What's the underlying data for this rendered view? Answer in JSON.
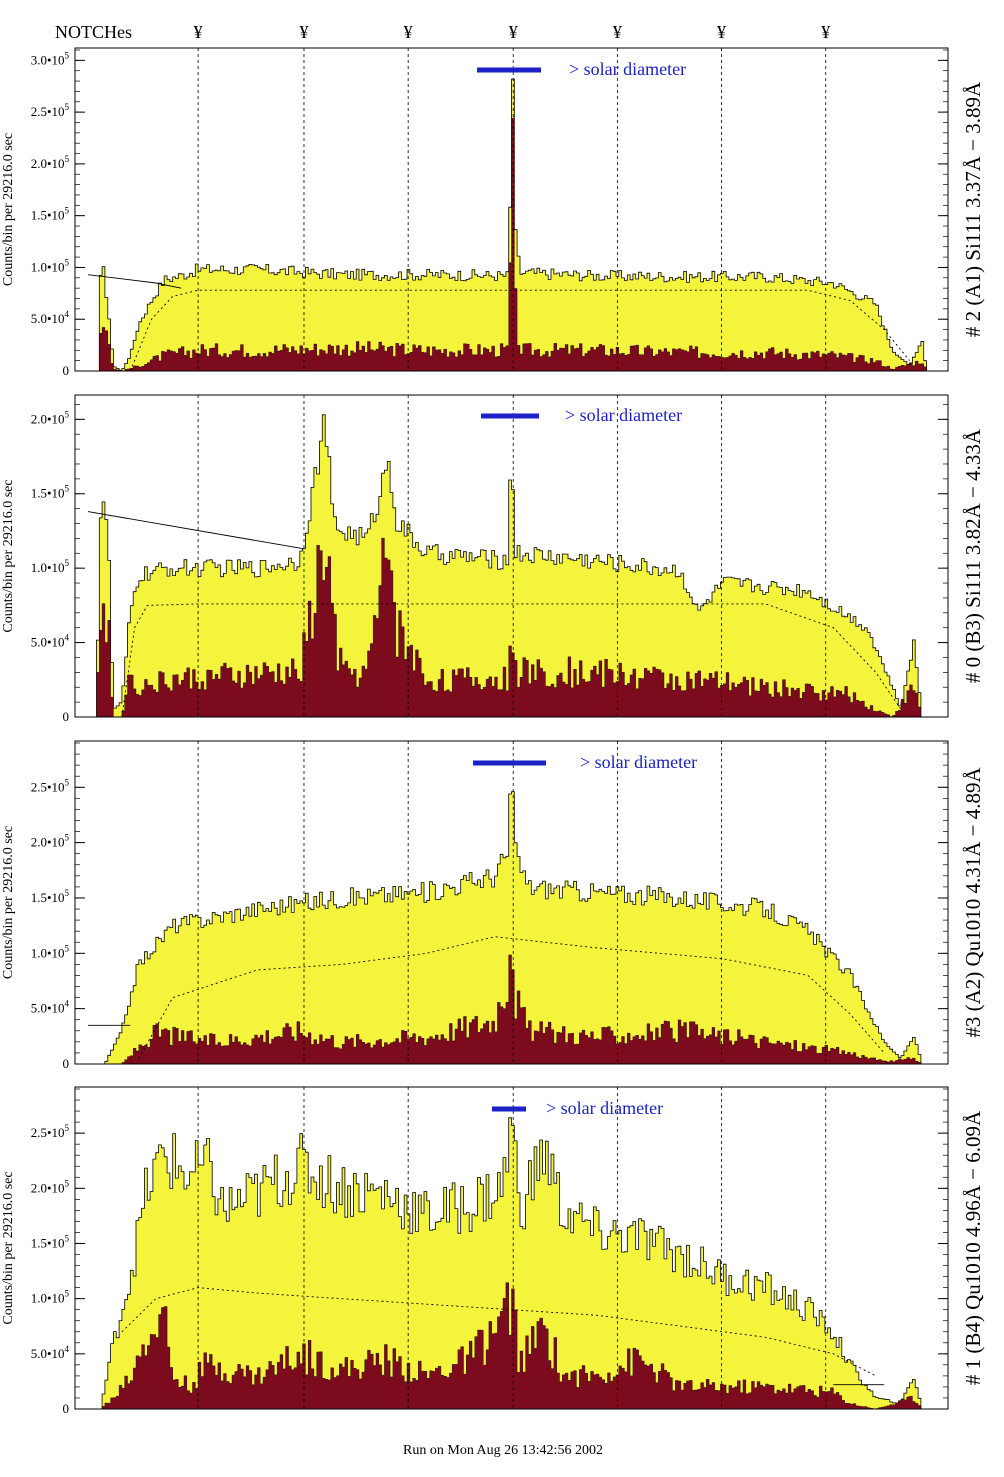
{
  "header": {
    "notch_label": "NOTCHes",
    "notch_symbol": "¥"
  },
  "footer": {
    "run_text": "Run on Mon Aug 26 13:42:56 2002"
  },
  "colors": {
    "fill": "#f4f43c",
    "dark": "#7c0b1d",
    "annotation": "#1a22c8"
  },
  "chart_data": [
    {
      "type": "area",
      "id": "p1",
      "side_label": "# 2 (A1) Si111  3.37Å − 3.89Å",
      "ylabel": "Counts/bin per  29216.0 sec",
      "annotation": "> solar diameter",
      "xlim": [
        0,
        1
      ],
      "ylim": [
        0,
        310000
      ],
      "yticks": [
        {
          "v": 0,
          "t": "0"
        },
        {
          "v": 50000,
          "t": "5.0•10",
          "e": "4"
        },
        {
          "v": 100000,
          "t": "1.0•10",
          "e": "5"
        },
        {
          "v": 150000,
          "t": "1.5•10",
          "e": "5"
        },
        {
          "v": 200000,
          "t": "2.0•10",
          "e": "5"
        },
        {
          "v": 250000,
          "t": "2.5•10",
          "e": "5"
        },
        {
          "v": 300000,
          "t": "3.0•10",
          "e": "5"
        }
      ],
      "notches": [
        0.13,
        0.255,
        0.378,
        0.502,
        0.625,
        0.748,
        0.871
      ],
      "yellow": [
        [
          0,
          0
        ],
        [
          0.012,
          0
        ],
        [
          0.014,
          85000
        ],
        [
          0.018,
          98000
        ],
        [
          0.024,
          60000
        ],
        [
          0.03,
          5000
        ],
        [
          0.04,
          0
        ],
        [
          0.05,
          15000
        ],
        [
          0.06,
          45000
        ],
        [
          0.075,
          68000
        ],
        [
          0.09,
          88000
        ],
        [
          0.11,
          92000
        ],
        [
          0.13,
          98000
        ],
        [
          0.2,
          98000
        ],
        [
          0.3,
          93000
        ],
        [
          0.4,
          93000
        ],
        [
          0.495,
          92000
        ],
        [
          0.498,
          130000
        ],
        [
          0.5,
          285000
        ],
        [
          0.502,
          285000
        ],
        [
          0.505,
          130000
        ],
        [
          0.51,
          95000
        ],
        [
          0.6,
          92000
        ],
        [
          0.7,
          91000
        ],
        [
          0.8,
          91000
        ],
        [
          0.88,
          85000
        ],
        [
          0.93,
          65000
        ],
        [
          0.95,
          20000
        ],
        [
          0.97,
          5000
        ],
        [
          0.985,
          30000
        ],
        [
          0.99,
          0
        ],
        [
          1,
          0
        ]
      ],
      "dark": [
        [
          0,
          0
        ],
        [
          0.012,
          0
        ],
        [
          0.014,
          40000
        ],
        [
          0.018,
          55000
        ],
        [
          0.024,
          30000
        ],
        [
          0.03,
          2000
        ],
        [
          0.04,
          0
        ],
        [
          0.06,
          5000
        ],
        [
          0.09,
          15000
        ],
        [
          0.13,
          20000
        ],
        [
          0.2,
          20000
        ],
        [
          0.3,
          22000
        ],
        [
          0.4,
          20000
        ],
        [
          0.495,
          20000
        ],
        [
          0.498,
          80000
        ],
        [
          0.5,
          185000
        ],
        [
          0.502,
          185000
        ],
        [
          0.505,
          60000
        ],
        [
          0.51,
          20000
        ],
        [
          0.6,
          20000
        ],
        [
          0.7,
          18000
        ],
        [
          0.8,
          18000
        ],
        [
          0.88,
          15000
        ],
        [
          0.93,
          10000
        ],
        [
          0.95,
          2000
        ],
        [
          0.985,
          10000
        ],
        [
          0.99,
          0
        ],
        [
          1,
          0
        ]
      ],
      "dotted": [
        [
          0.05,
          0
        ],
        [
          0.075,
          50000
        ],
        [
          0.1,
          72000
        ],
        [
          0.13,
          78000
        ],
        [
          0.85,
          78000
        ],
        [
          0.9,
          68000
        ],
        [
          0.94,
          40000
        ],
        [
          0.97,
          10000
        ]
      ],
      "solid": [
        [
          0,
          93000
        ],
        [
          0.08,
          85000
        ],
        [
          0.11,
          80000
        ]
      ]
    },
    {
      "type": "area",
      "id": "p2",
      "side_label": "# 0 (B3) Si111  3.82Å − 4.33Å",
      "ylabel": "Counts/bin per  29216.0 sec",
      "annotation": "> solar diameter",
      "xlim": [
        0,
        1
      ],
      "ylim": [
        0,
        215000
      ],
      "yticks": [
        {
          "v": 0,
          "t": "0"
        },
        {
          "v": 50000,
          "t": "5.0•10",
          "e": "4"
        },
        {
          "v": 100000,
          "t": "1.0•10",
          "e": "5"
        },
        {
          "v": 150000,
          "t": "1.5•10",
          "e": "5"
        },
        {
          "v": 200000,
          "t": "2.0•10",
          "e": "5"
        }
      ],
      "notches": [
        0.13,
        0.255,
        0.378,
        0.502,
        0.625,
        0.748,
        0.871
      ],
      "yellow": [
        [
          0,
          0
        ],
        [
          0.01,
          0
        ],
        [
          0.014,
          130000
        ],
        [
          0.018,
          150000
        ],
        [
          0.024,
          120000
        ],
        [
          0.03,
          5000
        ],
        [
          0.04,
          10000
        ],
        [
          0.05,
          70000
        ],
        [
          0.06,
          95000
        ],
        [
          0.1,
          100000
        ],
        [
          0.2,
          100000
        ],
        [
          0.25,
          105000
        ],
        [
          0.265,
          150000
        ],
        [
          0.28,
          200000
        ],
        [
          0.29,
          130000
        ],
        [
          0.3,
          125000
        ],
        [
          0.33,
          120000
        ],
        [
          0.345,
          150000
        ],
        [
          0.355,
          175000
        ],
        [
          0.365,
          130000
        ],
        [
          0.4,
          110000
        ],
        [
          0.495,
          105000
        ],
        [
          0.5,
          185000
        ],
        [
          0.505,
          110000
        ],
        [
          0.6,
          105000
        ],
        [
          0.7,
          98000
        ],
        [
          0.72,
          70000
        ],
        [
          0.75,
          90000
        ],
        [
          0.85,
          85000
        ],
        [
          0.92,
          60000
        ],
        [
          0.95,
          20000
        ],
        [
          0.96,
          5000
        ],
        [
          0.975,
          50000
        ],
        [
          0.985,
          0
        ],
        [
          1,
          0
        ]
      ],
      "dark": [
        [
          0,
          0
        ],
        [
          0.01,
          0
        ],
        [
          0.014,
          80000
        ],
        [
          0.018,
          95000
        ],
        [
          0.024,
          60000
        ],
        [
          0.03,
          0
        ],
        [
          0.04,
          0
        ],
        [
          0.05,
          30000
        ],
        [
          0.06,
          20000
        ],
        [
          0.1,
          25000
        ],
        [
          0.2,
          28000
        ],
        [
          0.25,
          30000
        ],
        [
          0.265,
          70000
        ],
        [
          0.28,
          120000
        ],
        [
          0.29,
          60000
        ],
        [
          0.3,
          30000
        ],
        [
          0.33,
          30000
        ],
        [
          0.345,
          80000
        ],
        [
          0.355,
          120000
        ],
        [
          0.365,
          60000
        ],
        [
          0.4,
          25000
        ],
        [
          0.495,
          25000
        ],
        [
          0.5,
          75000
        ],
        [
          0.505,
          30000
        ],
        [
          0.6,
          30000
        ],
        [
          0.7,
          25000
        ],
        [
          0.8,
          20000
        ],
        [
          0.9,
          15000
        ],
        [
          0.93,
          5000
        ],
        [
          0.95,
          0
        ],
        [
          0.975,
          20000
        ],
        [
          0.985,
          0
        ],
        [
          1,
          0
        ]
      ],
      "dotted": [
        [
          0.04,
          0
        ],
        [
          0.055,
          60000
        ],
        [
          0.07,
          75000
        ],
        [
          0.13,
          76000
        ],
        [
          0.8,
          76000
        ],
        [
          0.88,
          60000
        ],
        [
          0.93,
          30000
        ],
        [
          0.96,
          5000
        ]
      ],
      "solid": [
        [
          0,
          138000
        ],
        [
          0.255,
          113000
        ]
      ]
    },
    {
      "type": "area",
      "id": "p3",
      "side_label": "#3 (A2) Qu1010  4.31Å − 4.89Å",
      "ylabel": "Counts/bin per  29216.0 sec",
      "annotation": "> solar diameter",
      "xlim": [
        0,
        1
      ],
      "ylim": [
        0,
        290000
      ],
      "yticks": [
        {
          "v": 0,
          "t": "0"
        },
        {
          "v": 50000,
          "t": "5.0•10",
          "e": "4"
        },
        {
          "v": 100000,
          "t": "1.0•10",
          "e": "5"
        },
        {
          "v": 150000,
          "t": "1.5•10",
          "e": "5"
        },
        {
          "v": 200000,
          "t": "2.0•10",
          "e": "5"
        },
        {
          "v": 250000,
          "t": "2.5•10",
          "e": "5"
        }
      ],
      "notches": [
        0.13,
        0.255,
        0.378,
        0.502,
        0.625,
        0.748,
        0.871
      ],
      "yellow": [
        [
          0,
          0
        ],
        [
          0.02,
          0
        ],
        [
          0.04,
          30000
        ],
        [
          0.06,
          90000
        ],
        [
          0.1,
          125000
        ],
        [
          0.2,
          140000
        ],
        [
          0.3,
          150000
        ],
        [
          0.4,
          155000
        ],
        [
          0.48,
          170000
        ],
        [
          0.495,
          190000
        ],
        [
          0.5,
          265000
        ],
        [
          0.505,
          190000
        ],
        [
          0.52,
          160000
        ],
        [
          0.6,
          155000
        ],
        [
          0.7,
          150000
        ],
        [
          0.8,
          140000
        ],
        [
          0.85,
          120000
        ],
        [
          0.9,
          80000
        ],
        [
          0.94,
          20000
        ],
        [
          0.96,
          5000
        ],
        [
          0.975,
          25000
        ],
        [
          0.985,
          0
        ],
        [
          1,
          0
        ]
      ],
      "dark": [
        [
          0,
          0
        ],
        [
          0.04,
          0
        ],
        [
          0.06,
          15000
        ],
        [
          0.08,
          28000
        ],
        [
          0.15,
          20000
        ],
        [
          0.25,
          30000
        ],
        [
          0.3,
          20000
        ],
        [
          0.4,
          25000
        ],
        [
          0.48,
          40000
        ],
        [
          0.495,
          80000
        ],
        [
          0.5,
          140000
        ],
        [
          0.505,
          60000
        ],
        [
          0.52,
          30000
        ],
        [
          0.6,
          25000
        ],
        [
          0.7,
          30000
        ],
        [
          0.8,
          20000
        ],
        [
          0.9,
          10000
        ],
        [
          0.94,
          2000
        ],
        [
          0.975,
          5000
        ],
        [
          0.985,
          0
        ],
        [
          1,
          0
        ]
      ],
      "dotted": [
        [
          0.06,
          5000
        ],
        [
          0.1,
          60000
        ],
        [
          0.2,
          85000
        ],
        [
          0.3,
          90000
        ],
        [
          0.4,
          100000
        ],
        [
          0.48,
          115000
        ],
        [
          0.6,
          105000
        ],
        [
          0.75,
          95000
        ],
        [
          0.85,
          80000
        ],
        [
          0.9,
          45000
        ],
        [
          0.94,
          10000
        ]
      ],
      "solid": [
        [
          0,
          35000
        ],
        [
          0.05,
          35000
        ]
      ]
    },
    {
      "type": "area",
      "id": "p4",
      "side_label": "# 1 (B4) Qu1010 4.96Å − 6.09Å",
      "ylabel": "Counts/bin per  29216.0 sec",
      "annotation": "> solar diameter",
      "xlim": [
        0,
        1
      ],
      "ylim": [
        0,
        290000
      ],
      "yticks": [
        {
          "v": 0,
          "t": "0"
        },
        {
          "v": 50000,
          "t": "5.0•10",
          "e": "4"
        },
        {
          "v": 100000,
          "t": "1.0•10",
          "e": "5"
        },
        {
          "v": 150000,
          "t": "1.5•10",
          "e": "5"
        },
        {
          "v": 200000,
          "t": "2.0•10",
          "e": "5"
        },
        {
          "v": 250000,
          "t": "2.5•10",
          "e": "5"
        }
      ],
      "notches": [
        0.13,
        0.255,
        0.378,
        0.502,
        0.625,
        0.748,
        0.871
      ],
      "yellow": [
        [
          0,
          0
        ],
        [
          0.015,
          0
        ],
        [
          0.03,
          60000
        ],
        [
          0.05,
          120000
        ],
        [
          0.07,
          200000
        ],
        [
          0.09,
          230000
        ],
        [
          0.12,
          210000
        ],
        [
          0.14,
          220000
        ],
        [
          0.16,
          180000
        ],
        [
          0.2,
          195000
        ],
        [
          0.25,
          220000
        ],
        [
          0.3,
          200000
        ],
        [
          0.35,
          195000
        ],
        [
          0.4,
          175000
        ],
        [
          0.45,
          185000
        ],
        [
          0.49,
          200000
        ],
        [
          0.5,
          265000
        ],
        [
          0.51,
          180000
        ],
        [
          0.54,
          235000
        ],
        [
          0.56,
          180000
        ],
        [
          0.6,
          160000
        ],
        [
          0.65,
          155000
        ],
        [
          0.7,
          140000
        ],
        [
          0.75,
          120000
        ],
        [
          0.8,
          110000
        ],
        [
          0.85,
          90000
        ],
        [
          0.88,
          70000
        ],
        [
          0.9,
          40000
        ],
        [
          0.93,
          10000
        ],
        [
          0.96,
          5000
        ],
        [
          0.975,
          30000
        ],
        [
          0.985,
          0
        ],
        [
          1,
          0
        ]
      ],
      "dark": [
        [
          0,
          0
        ],
        [
          0.015,
          0
        ],
        [
          0.03,
          10000
        ],
        [
          0.05,
          30000
        ],
        [
          0.07,
          70000
        ],
        [
          0.09,
          85000
        ],
        [
          0.1,
          30000
        ],
        [
          0.12,
          20000
        ],
        [
          0.14,
          40000
        ],
        [
          0.2,
          30000
        ],
        [
          0.25,
          50000
        ],
        [
          0.3,
          35000
        ],
        [
          0.35,
          45000
        ],
        [
          0.4,
          30000
        ],
        [
          0.45,
          45000
        ],
        [
          0.49,
          80000
        ],
        [
          0.5,
          100000
        ],
        [
          0.51,
          40000
        ],
        [
          0.54,
          75000
        ],
        [
          0.56,
          30000
        ],
        [
          0.6,
          30000
        ],
        [
          0.65,
          45000
        ],
        [
          0.7,
          20000
        ],
        [
          0.8,
          20000
        ],
        [
          0.88,
          15000
        ],
        [
          0.9,
          5000
        ],
        [
          0.93,
          0
        ],
        [
          0.975,
          10000
        ],
        [
          0.985,
          0
        ],
        [
          1,
          0
        ]
      ],
      "dotted": [
        [
          0.04,
          70000
        ],
        [
          0.08,
          100000
        ],
        [
          0.13,
          110000
        ],
        [
          0.2,
          105000
        ],
        [
          0.3,
          100000
        ],
        [
          0.4,
          95000
        ],
        [
          0.5,
          90000
        ],
        [
          0.6,
          85000
        ],
        [
          0.7,
          75000
        ],
        [
          0.8,
          65000
        ],
        [
          0.88,
          50000
        ],
        [
          0.93,
          30000
        ]
      ],
      "solid": [
        [
          0.88,
          22000
        ],
        [
          0.94,
          22000
        ]
      ]
    }
  ]
}
